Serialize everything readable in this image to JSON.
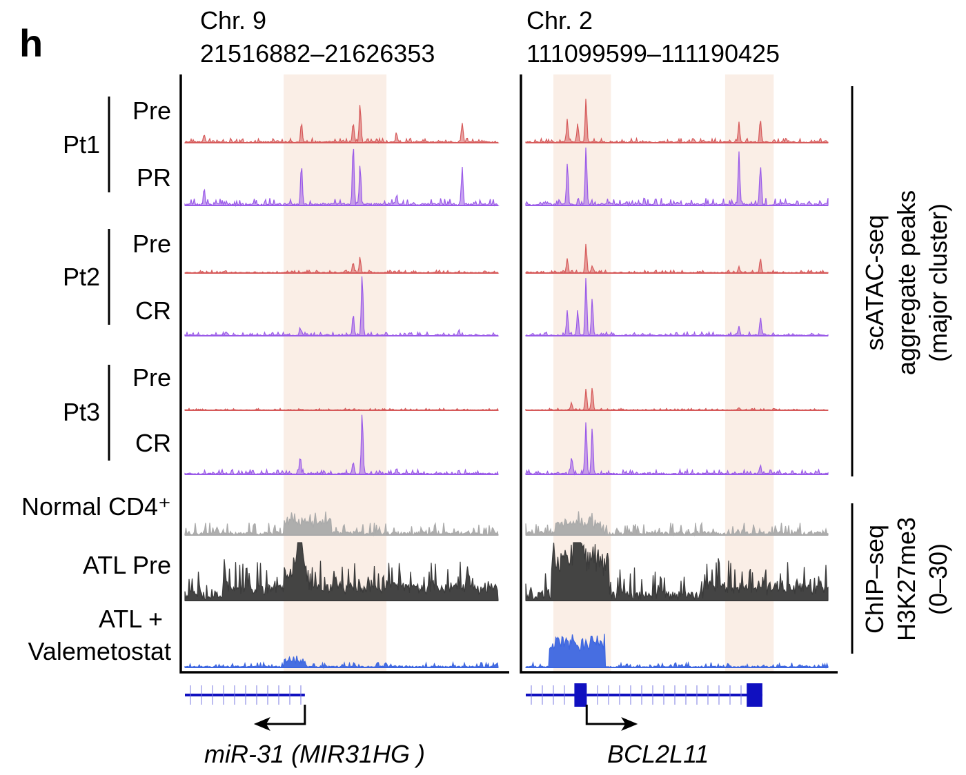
{
  "panel_letter": "h",
  "chart_data": {
    "type": "area",
    "title": "",
    "regions": [
      {
        "chrom_label": "Chr. 9",
        "range_label": "21516882–21626353",
        "start": 21516882,
        "end": 21626353,
        "highlights": [
          [
            21551400,
            21587300
          ]
        ],
        "gene": {
          "name": "miR-31",
          "alias": "MIR31HG",
          "strand": "-",
          "tx_start": 21516882,
          "tx_end": 21558800
        }
      },
      {
        "chrom_label": "Chr. 2",
        "range_label": "111099599–111190425",
        "start": 111099599,
        "end": 111190425,
        "highlights": [
          [
            111107900,
            111125200
          ],
          [
            111159500,
            111174100
          ]
        ],
        "gene": {
          "name": "BCL2L11",
          "strand": "+",
          "tx_start": 111099599,
          "tx_end": 111170700,
          "exons": [
            [
              111114200,
              111117900
            ],
            [
              111166000,
              111170700
            ]
          ]
        }
      }
    ],
    "groups": [
      {
        "label": "Pt1",
        "tracks": [
          0,
          1
        ]
      },
      {
        "label": "Pt2",
        "tracks": [
          2,
          3
        ]
      },
      {
        "label": "Pt3",
        "tracks": [
          4,
          5
        ]
      }
    ],
    "tracks": [
      {
        "label": "Pre",
        "assay": "scATAC",
        "color": "#d65a5a",
        "noise": 0.04,
        "peaks": [
          [
            [
              21557611,
              0.35
            ],
            [
              21575686,
              0.35
            ],
            [
              21578096,
              0.7
            ],
            [
              21613764,
              0.35
            ],
            [
              21523630,
              0.12
            ],
            [
              21590869,
              0.15
            ]
          ],
          [
            [
              111112079,
              0.4
            ],
            [
              111115199,
              0.35
            ],
            [
              111117695,
              0.8
            ],
            [
              111163663,
              0.35
            ],
            [
              111170111,
              0.4
            ]
          ]
        ]
      },
      {
        "label": "PR",
        "assay": "scATAC",
        "color": "#9a5ae8",
        "noise": 0.06,
        "peaks": [
          [
            [
              21523630,
              0.2
            ],
            [
              21557611,
              0.65
            ],
            [
              21575686,
              1.0
            ],
            [
              21578096,
              0.65
            ],
            [
              21613764,
              0.6
            ],
            [
              21590869,
              0.15
            ]
          ],
          [
            [
              111112079,
              0.65
            ],
            [
              111117695,
              0.95
            ],
            [
              111163663,
              0.85
            ],
            [
              111170111,
              0.65
            ]
          ]
        ]
      },
      {
        "label": "Pre",
        "assay": "scATAC",
        "color": "#d65a5a",
        "noise": 0.03,
        "peaks": [
          [
            [
              21575686,
              0.2
            ],
            [
              21578096,
              0.3
            ]
          ],
          [
            [
              111112079,
              0.3
            ],
            [
              111117695,
              0.6
            ],
            [
              111119567,
              0.15
            ],
            [
              111163663,
              0.12
            ],
            [
              111170111,
              0.3
            ]
          ]
        ]
      },
      {
        "label": "CR",
        "assay": "scATAC",
        "color": "#9a5ae8",
        "noise": 0.03,
        "peaks": [
          [
            [
              21557129,
              0.12
            ],
            [
              21575686,
              0.35
            ],
            [
              21578819,
              1.0
            ],
            [
              21612559,
              0.08
            ]
          ],
          [
            [
              111112079,
              0.4
            ],
            [
              111115199,
              0.4
            ],
            [
              111117695,
              0.95
            ],
            [
              111119567,
              0.6
            ],
            [
              111163663,
              0.15
            ],
            [
              111170111,
              0.25
            ]
          ]
        ]
      },
      {
        "label": "Pre",
        "assay": "scATAC",
        "color": "#d65a5a",
        "noise": 0.02,
        "peaks": [
          [],
          [
            [
              111113327,
              0.15
            ],
            [
              111117695,
              0.45
            ],
            [
              111119567,
              0.45
            ],
            [
              111163663,
              0.05
            ]
          ]
        ]
      },
      {
        "label": "CR",
        "assay": "scATAC",
        "color": "#9a5ae8",
        "noise": 0.04,
        "peaks": [
          [
            [
              21557129,
              0.25
            ],
            [
              21575686,
              0.2
            ],
            [
              21578819,
              1.0
            ],
            [
              21590869,
              0.1
            ]
          ],
          [
            [
              111113327,
              0.25
            ],
            [
              111117695,
              0.85
            ],
            [
              111119567,
              0.75
            ],
            [
              111170111,
              0.15
            ]
          ]
        ]
      },
      {
        "label": "Normal CD4⁺",
        "assay": "ChIP",
        "color": "#aaaaaa",
        "noise": 0.18,
        "domains": [
          [
            [
              21551400,
              21568000,
              0.35
            ]
          ],
          [
            [
              111108500,
              111122000,
              0.3
            ]
          ]
        ],
        "peaks": [
          [],
          []
        ]
      },
      {
        "label": "ATL Pre",
        "assay": "ChIP",
        "color": "#3a3a3a",
        "noise": 0.3,
        "domains": [
          [
            [
              21530000,
              21626353,
              0.15
            ],
            [
              21551400,
              21560000,
              0.3
            ]
          ],
          [
            [
              111107500,
              111124500,
              0.7
            ],
            [
              111153000,
              111190425,
              0.15
            ]
          ]
        ],
        "peaks": [
          [
            [
              21557129,
              0.85
            ]
          ],
          [
            [
              111115199,
              0.8
            ]
          ]
        ]
      },
      {
        "label": "ATL + Valemetostat",
        "assay": "ChIP",
        "color": "#3d66e0",
        "noise": 0.06,
        "domains": [
          [
            [
              21551400,
              21559000,
              0.15
            ]
          ],
          [
            [
              111106500,
              111123500,
              0.65
            ]
          ]
        ],
        "peaks": [
          [],
          []
        ]
      }
    ],
    "right_labels": [
      {
        "lines": [
          "scATAC-seq",
          "aggregate peaks",
          "(major cluster)"
        ]
      },
      {
        "lines": [
          "ChIP–seq",
          "H3K27me3",
          "(0–30)"
        ]
      }
    ],
    "highlight_color": "#faeee6"
  }
}
